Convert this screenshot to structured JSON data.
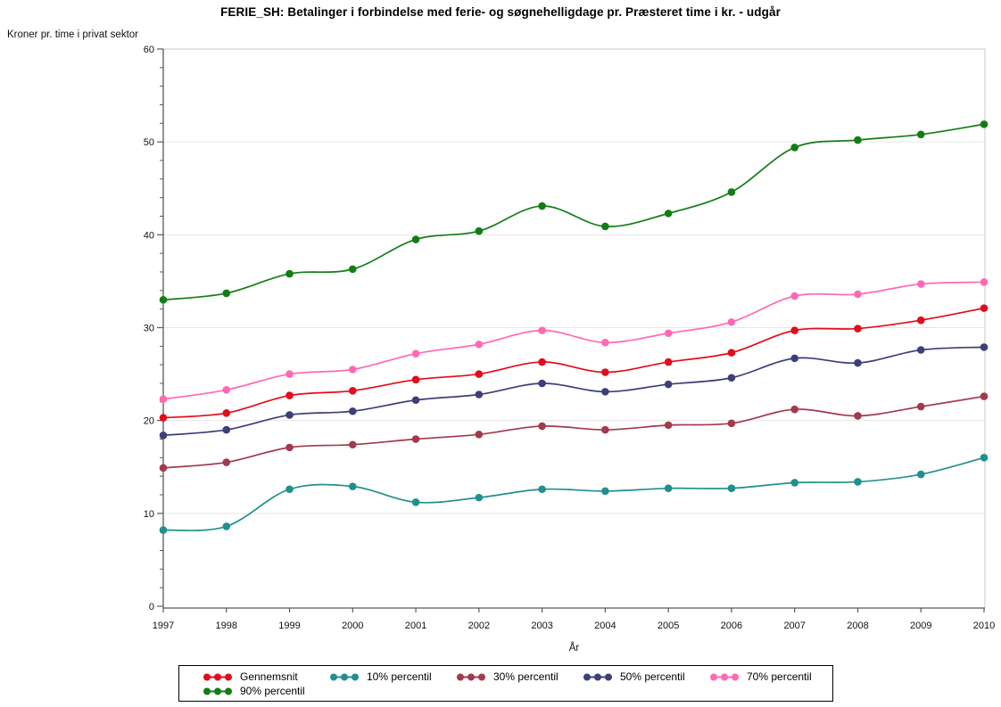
{
  "chart": {
    "title": "FERIE_SH: Betalinger i forbindelse med ferie- og søgnehelligdage pr. Præsteret time i kr. - udgår",
    "y_axis_label": "Kroner pr. time i privat sektor",
    "x_axis_label": "År"
  },
  "chart_data": {
    "type": "line",
    "title": "FERIE_SH: Betalinger i forbindelse med ferie- og søgnehelligdage pr. Præsteret time i kr. - udgår",
    "xlabel": "År",
    "ylabel": "Kroner pr. time i privat sektor",
    "x": [
      1997,
      1998,
      1999,
      2000,
      2001,
      2002,
      2003,
      2004,
      2005,
      2006,
      2007,
      2008,
      2009,
      2010
    ],
    "ylim": [
      0,
      60
    ],
    "y_ticks": [
      0,
      10,
      20,
      30,
      40,
      50,
      60
    ],
    "y_minor_step": 2,
    "grid": true,
    "smooth": true,
    "marker": "circle",
    "legend_position": "bottom",
    "legend_rows": [
      5,
      1
    ],
    "series": [
      {
        "name": "Gennemsnit",
        "color": "#E30B1C",
        "values": [
          20.3,
          20.8,
          22.7,
          23.2,
          24.4,
          25.0,
          26.3,
          25.2,
          26.3,
          27.3,
          29.7,
          29.9,
          30.8,
          32.1
        ]
      },
      {
        "name": "10% percentil",
        "color": "#21908C",
        "values": [
          8.2,
          8.6,
          12.6,
          12.9,
          11.2,
          11.7,
          12.6,
          12.4,
          12.7,
          12.7,
          13.3,
          13.4,
          14.2,
          16.0
        ]
      },
      {
        "name": "30% percentil",
        "color": "#A13A4D",
        "values": [
          14.9,
          15.5,
          17.1,
          17.4,
          18.0,
          18.5,
          19.4,
          19.0,
          19.5,
          19.7,
          21.2,
          20.5,
          21.5,
          22.6
        ]
      },
      {
        "name": "50% percentil",
        "color": "#3C3F78",
        "values": [
          18.4,
          19.0,
          20.6,
          21.0,
          22.2,
          22.8,
          24.0,
          23.1,
          23.9,
          24.6,
          26.7,
          26.2,
          27.6,
          27.9
        ]
      },
      {
        "name": "70% percentil",
        "color": "#FF69B4",
        "values": [
          22.3,
          23.3,
          25.0,
          25.5,
          27.2,
          28.2,
          29.7,
          28.4,
          29.4,
          30.6,
          33.4,
          33.6,
          34.7,
          34.9
        ]
      },
      {
        "name": "90% percentil",
        "color": "#127D15",
        "values": [
          33.0,
          33.7,
          35.8,
          36.3,
          39.5,
          40.4,
          43.1,
          40.9,
          42.3,
          44.6,
          49.4,
          50.2,
          50.8,
          51.9
        ]
      }
    ]
  },
  "colors": {
    "grid": "#E6E6E6",
    "axis": "#595959",
    "frame": "#C9C9C9",
    "text": "#000000",
    "background": "#FFFFFF"
  }
}
